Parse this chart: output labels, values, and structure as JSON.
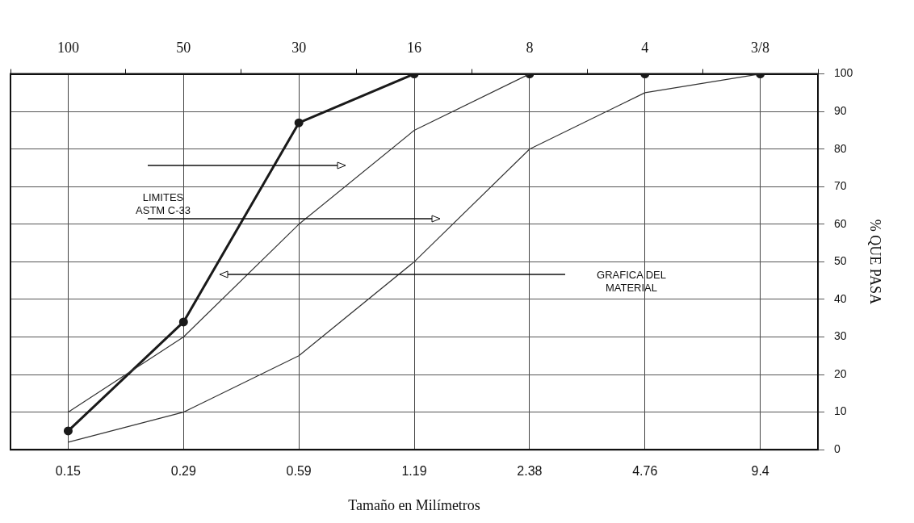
{
  "chart_data": {
    "type": "line",
    "xlabel": "Tamaño en Milímetros",
    "ylabel": "% QUE PASA",
    "categories": [
      "0.15",
      "0.29",
      "0.59",
      "1.19",
      "2.38",
      "4.76",
      "9.4"
    ],
    "ylim": [
      0,
      100
    ],
    "yticks": [
      0,
      10,
      20,
      30,
      40,
      50,
      60,
      70,
      80,
      90,
      100
    ],
    "grid": true,
    "legend": false,
    "series": [
      {
        "color": "#333333",
        "marker": "none",
        "values": [
          10,
          30,
          60,
          85,
          100,
          100,
          100
        ]
      },
      {
        "color": "#333333",
        "marker": "none",
        "values": [
          2,
          10,
          25,
          50,
          80,
          95,
          100
        ]
      },
      {
        "color": "#1a1a1a",
        "marker": "circle",
        "values": [
          5,
          34,
          87,
          100,
          100,
          100,
          100
        ]
      }
    ],
    "annotations": [
      "100",
      "50",
      "30",
      "16",
      "8",
      "4",
      "3/8",
      "LIMITES ASTM C-33",
      "GRAFICA DEL MATERIAL"
    ]
  }
}
